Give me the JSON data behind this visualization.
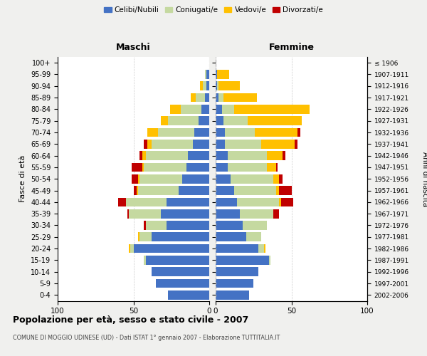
{
  "age_groups": [
    "0-4",
    "5-9",
    "10-14",
    "15-19",
    "20-24",
    "25-29",
    "30-34",
    "35-39",
    "40-44",
    "45-49",
    "50-54",
    "55-59",
    "60-64",
    "65-69",
    "70-74",
    "75-79",
    "80-84",
    "85-89",
    "90-94",
    "95-99",
    "100+"
  ],
  "birth_years": [
    "2002-2006",
    "1997-2001",
    "1992-1996",
    "1987-1991",
    "1982-1986",
    "1977-1981",
    "1972-1976",
    "1967-1971",
    "1962-1966",
    "1957-1961",
    "1952-1956",
    "1947-1951",
    "1942-1946",
    "1937-1941",
    "1932-1936",
    "1927-1931",
    "1922-1926",
    "1917-1921",
    "1912-1916",
    "1907-1911",
    "≤ 1906"
  ],
  "maschi": {
    "celibi": [
      27,
      35,
      38,
      42,
      50,
      38,
      28,
      32,
      28,
      20,
      18,
      15,
      14,
      11,
      10,
      7,
      5,
      3,
      2,
      2,
      0
    ],
    "coniugati": [
      0,
      0,
      0,
      1,
      2,
      8,
      14,
      21,
      27,
      27,
      28,
      28,
      28,
      27,
      24,
      20,
      14,
      6,
      2,
      1,
      0
    ],
    "vedovi": [
      0,
      0,
      0,
      0,
      1,
      1,
      0,
      0,
      0,
      1,
      1,
      1,
      2,
      3,
      7,
      5,
      7,
      3,
      2,
      0,
      0
    ],
    "divorziati": [
      0,
      0,
      0,
      0,
      0,
      0,
      1,
      1,
      5,
      2,
      4,
      7,
      2,
      2,
      0,
      0,
      0,
      0,
      0,
      0,
      0
    ]
  },
  "femmine": {
    "nubili": [
      22,
      25,
      28,
      35,
      28,
      20,
      18,
      16,
      14,
      12,
      10,
      8,
      8,
      6,
      6,
      5,
      4,
      2,
      1,
      1,
      0
    ],
    "coniugate": [
      0,
      0,
      0,
      1,
      4,
      10,
      16,
      22,
      28,
      28,
      28,
      26,
      26,
      24,
      20,
      16,
      8,
      3,
      1,
      0,
      0
    ],
    "vedove": [
      0,
      0,
      0,
      0,
      1,
      0,
      0,
      0,
      1,
      2,
      4,
      6,
      10,
      22,
      28,
      36,
      50,
      22,
      14,
      8,
      0
    ],
    "divorziate": [
      0,
      0,
      0,
      0,
      0,
      0,
      0,
      4,
      8,
      8,
      2,
      1,
      2,
      2,
      2,
      0,
      0,
      0,
      0,
      0,
      0
    ]
  },
  "colors": {
    "celibi": "#4472c4",
    "coniugati": "#c5d9a0",
    "vedovi": "#ffc000",
    "divorziati": "#c00000"
  },
  "legend_labels": [
    "Celibi/Nubili",
    "Coniugati/e",
    "Vedovi/e",
    "Divorzati/e"
  ],
  "title": "Popolazione per età, sesso e stato civile - 2007",
  "subtitle": "COMUNE DI MOGGIO UDINESE (UD) - Dati ISTAT 1° gennaio 2007 - Elaborazione TUTTITALIA.IT",
  "ylabel_left": "Fasce di età",
  "ylabel_right": "Anni di nascita",
  "header_left": "Maschi",
  "header_right": "Femmine",
  "xlim": 100,
  "bg_color": "#f0f0ee",
  "plot_bg": "#ffffff"
}
